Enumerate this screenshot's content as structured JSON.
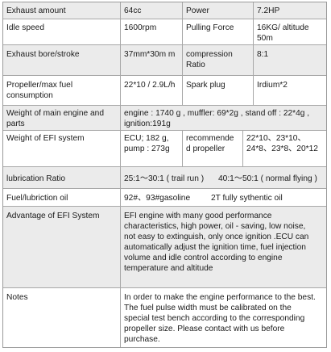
{
  "rows": {
    "r1": {
      "label": "Exhaust amount",
      "value": "64cc",
      "label2": "Power",
      "value2": "7.2HP"
    },
    "r2": {
      "label": "Idle speed",
      "value": "1600rpm",
      "label2": "Pulling Force",
      "value2": "16KG/ altitude 50m"
    },
    "r3": {
      "label": "Exhaust bore/stroke",
      "value": "37mm*30m m",
      "label2": "compression Ratio",
      "value2": "8:1"
    },
    "r4": {
      "label": "Propeller/max fuel consumption",
      "value": "22*10 / 2.9L/h",
      "label2": "Spark plug",
      "value2": "Irdium*2"
    },
    "r5": {
      "label": "Weight of main engine and parts",
      "value": "engine : 1740 g , muffler: 69*2g , stand off : 22*4g , ignition:191g"
    },
    "r6": {
      "label": "Weight of EFI system",
      "value": "ECU; 182 g, pump : 273g",
      "label2": "recommende d propeller",
      "value2": "22*10、23*10、24*8、23*8、20*12"
    },
    "r7": {
      "label": "lubrication Ratio",
      "value": "25:1～30:1 ( trail run )",
      "value2": "40:1～50:1 ( normal flying )"
    },
    "r8": {
      "label": "Fuel/lubriction oil",
      "value": "92#、93#gasoline",
      "value2": "2T fully sythentic oil"
    },
    "r9": {
      "label": "Advantage of EFI System",
      "value": "EFI engine with  many good performance characteristics, high power, oil - saving, low noise, not easy to extinguish, only once  ignition .ECU can automatically adjust the ignition time, fuel injection volume and idle  control according to engine temperature and altitude"
    },
    "r10": {
      "label": "Notes",
      "value": "In order to make the engine  performance  to the best. The fuel pulse width must be calibrated on the special test bench according to the corresponding propeller  size. Please contact with us before purchase."
    }
  }
}
